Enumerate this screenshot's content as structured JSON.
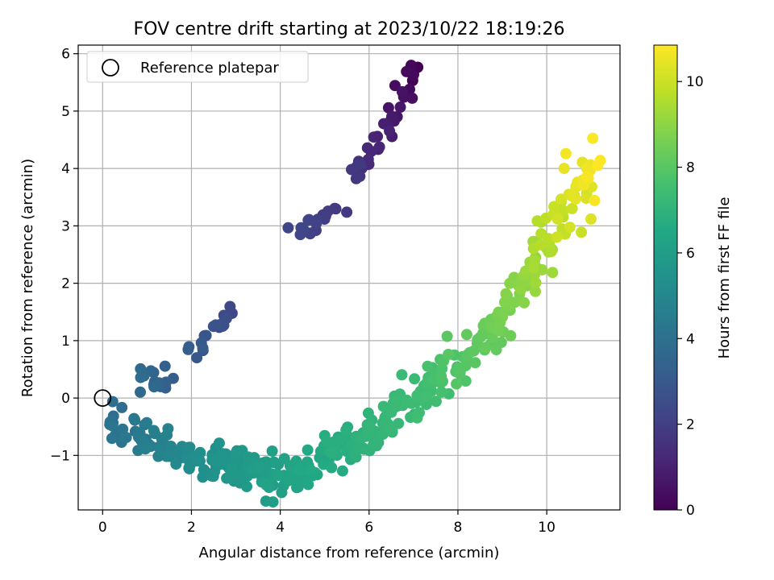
{
  "chart_data": {
    "type": "scatter",
    "title": "FOV centre drift starting at 2023/10/22 18:19:26",
    "xlabel": "Angular distance from reference (arcmin)",
    "ylabel": "Rotation from reference (arcmin)",
    "xlim": [
      -0.55,
      11.65
    ],
    "ylim": [
      -1.95,
      6.15
    ],
    "xticks": [
      0,
      2,
      4,
      6,
      8,
      10
    ],
    "yticks": [
      -1,
      0,
      1,
      2,
      3,
      4,
      5,
      6
    ],
    "grid": true,
    "legend": {
      "position": "top-left",
      "entries": [
        "Reference platepar"
      ]
    },
    "reference_point": {
      "x": 0,
      "y": 0
    },
    "colorbar": {
      "label": "Hours from first FF file",
      "colormap": "viridis",
      "range": [
        0,
        10.85
      ],
      "ticks": [
        0,
        2,
        4,
        6,
        8,
        10
      ]
    },
    "segments": [
      {
        "t0": 0.0,
        "t1": 1.2,
        "x0": 7.05,
        "y0": 5.8,
        "x1": 6.2,
        "y1": 4.35,
        "n": 28,
        "jit": 0.12
      },
      {
        "t0": 1.2,
        "t1": 1.8,
        "x0": 6.0,
        "y0": 4.3,
        "x1": 5.6,
        "y1": 3.85,
        "n": 14,
        "jit": 0.1
      },
      {
        "t0": 1.8,
        "t1": 2.3,
        "x0": 5.3,
        "y0": 3.3,
        "x1": 4.3,
        "y1": 2.9,
        "n": 18,
        "jit": 0.1
      },
      {
        "t0": 2.3,
        "t1": 3.2,
        "x0": 2.95,
        "y0": 1.45,
        "x1": 2.0,
        "y1": 0.75,
        "n": 18,
        "jit": 0.1
      },
      {
        "t0": 3.2,
        "t1": 3.8,
        "x0": 1.6,
        "y0": 0.35,
        "x1": 0.8,
        "y1": 0.15,
        "n": 16,
        "jit": 0.12
      },
      {
        "t0": 3.8,
        "t1": 4.2,
        "x0": 0.3,
        "y0": -0.1,
        "x1": 0.2,
        "y1": -0.55,
        "n": 8,
        "jit": 0.08
      },
      {
        "t0": 4.2,
        "t1": 5.3,
        "x0": 0.5,
        "y0": -0.5,
        "x1": 2.2,
        "y1": -1.15,
        "n": 50,
        "jit": 0.15
      },
      {
        "t0": 5.3,
        "t1": 6.3,
        "x0": 2.2,
        "y0": -1.15,
        "x1": 4.3,
        "y1": -1.3,
        "n": 95,
        "jit": 0.17
      },
      {
        "t0": 6.3,
        "t1": 7.0,
        "x0": 4.3,
        "y0": -1.3,
        "x1": 6.0,
        "y1": -0.6,
        "n": 75,
        "jit": 0.18
      },
      {
        "t0": 7.0,
        "t1": 7.5,
        "x0": 6.0,
        "y0": -0.6,
        "x1": 7.3,
        "y1": 0.2,
        "n": 60,
        "jit": 0.22
      },
      {
        "t0": 7.5,
        "t1": 8.3,
        "x0": 7.3,
        "y0": 0.2,
        "x1": 8.7,
        "y1": 1.05,
        "n": 45,
        "jit": 0.2
      },
      {
        "t0": 8.3,
        "t1": 9.2,
        "x0": 8.7,
        "y0": 1.05,
        "x1": 9.7,
        "y1": 2.3,
        "n": 45,
        "jit": 0.2
      },
      {
        "t0": 9.2,
        "t1": 10.85,
        "x0": 9.7,
        "y0": 2.3,
        "x1": 11.05,
        "y1": 4.2,
        "n": 60,
        "jit": 0.22
      }
    ]
  }
}
